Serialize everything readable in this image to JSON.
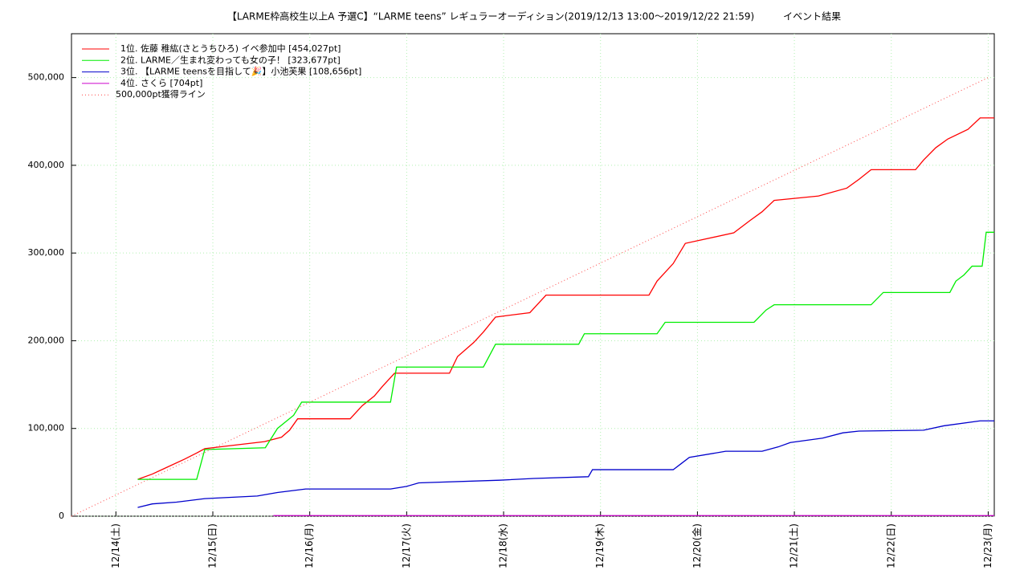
{
  "chart_data": {
    "type": "line",
    "title": "【LARME枠高校生以上A 予選C】“LARME teens” レギュラーオーディション(2019/12/13 13:00～2019/12/22 21:59)　　　イベント結果",
    "xlim": [
      -11,
      217.5
    ],
    "xticks": [
      {
        "value": 0,
        "label": "12/14(土)"
      },
      {
        "value": 24,
        "label": "12/15(日)"
      },
      {
        "value": 48,
        "label": "12/16(月)"
      },
      {
        "value": 72,
        "label": "12/17(火)"
      },
      {
        "value": 96,
        "label": "12/18(水)"
      },
      {
        "value": 120,
        "label": "12/19(木)"
      },
      {
        "value": 144,
        "label": "12/20(金)"
      },
      {
        "value": 168,
        "label": "12/21(土)"
      },
      {
        "value": 192,
        "label": "12/22(日)"
      },
      {
        "value": 216,
        "label": "12/23(月)"
      }
    ],
    "ylim": [
      0,
      550000
    ],
    "yticks": [
      0,
      {
        "value": 100000,
        "label": "100,000"
      },
      {
        "value": 200000,
        "label": "200,000"
      },
      {
        "value": 300000,
        "label": "300,000"
      },
      {
        "value": 400000,
        "label": "400,000"
      },
      {
        "value": 500000,
        "label": "500,000"
      }
    ],
    "grid": true,
    "legend": "upper left",
    "series": [
      {
        "name": "1位. 佐藤 稚紘(さとうちひろ) イベ参加中 [454,027pt]",
        "color": "#ff0000",
        "x": [
          5.4,
          9,
          12.3,
          17,
          20,
          22,
          36.8,
          41,
          43,
          45,
          58,
          61,
          64,
          66,
          69,
          82.6,
          84.6,
          88.6,
          91,
          94,
          102.5,
          106.5,
          132,
          134,
          138,
          141,
          153,
          157,
          160,
          163,
          174,
          181,
          184,
          187,
          198,
          200,
          203,
          206,
          211,
          214,
          217.5
        ],
        "values": [
          42000,
          48000,
          55000,
          65000,
          72000,
          77000,
          85000,
          90000,
          98000,
          111000,
          111000,
          126000,
          137000,
          148000,
          163000,
          163000,
          182000,
          198000,
          210000,
          227000,
          232000,
          252000,
          252000,
          268000,
          288000,
          311000,
          323000,
          337000,
          347000,
          360000,
          365000,
          374000,
          384000,
          395000,
          395000,
          406000,
          420000,
          430000,
          441000,
          454027,
          454027
        ]
      },
      {
        "name": "2位. LARME／生まれ変わっても女の子！ [323,677pt]",
        "color": "#00ee00",
        "x": [
          5.4,
          20,
          22,
          37,
          40,
          44,
          46,
          68,
          69.5,
          91,
          94,
          114.6,
          116,
          134,
          136,
          158,
          161,
          163,
          187,
          190,
          206.5,
          208,
          210,
          212,
          214.5,
          215.5,
          217.5
        ],
        "values": [
          42000,
          42000,
          76000,
          78000,
          100000,
          115000,
          130000,
          130000,
          170000,
          170000,
          196000,
          196000,
          208000,
          208000,
          221000,
          221000,
          235000,
          241000,
          241000,
          255000,
          255000,
          268000,
          275000,
          285000,
          285000,
          323677,
          323677
        ]
      },
      {
        "name": "3位. 【LARME teensを目指して🎉】小池芙果 [108,656pt]",
        "color": "#0000cc",
        "x": [
          5.4,
          9,
          15,
          22,
          35,
          40,
          47,
          68,
          72,
          75,
          95,
          103.5,
          117,
          118,
          138,
          140,
          142,
          151,
          160,
          164,
          167,
          175,
          180,
          184,
          200,
          205,
          214,
          217.5
        ],
        "values": [
          10000,
          14000,
          16000,
          20000,
          23000,
          27000,
          31000,
          31000,
          34000,
          38000,
          41000,
          43000,
          45000,
          53000,
          53000,
          60000,
          67000,
          74000,
          74000,
          79000,
          84000,
          89000,
          95000,
          97000,
          98000,
          103000,
          108656,
          108656
        ]
      },
      {
        "name": "4位. さくら [704pt]",
        "color": "#cc00cc",
        "x": [
          39,
          217.5
        ],
        "values": [
          704,
          704
        ]
      },
      {
        "name": "500,000pt獲得ライン",
        "color": "#ff4444",
        "dash": true,
        "x": [
          -11,
          216
        ],
        "values": [
          0,
          500000
        ]
      }
    ]
  }
}
